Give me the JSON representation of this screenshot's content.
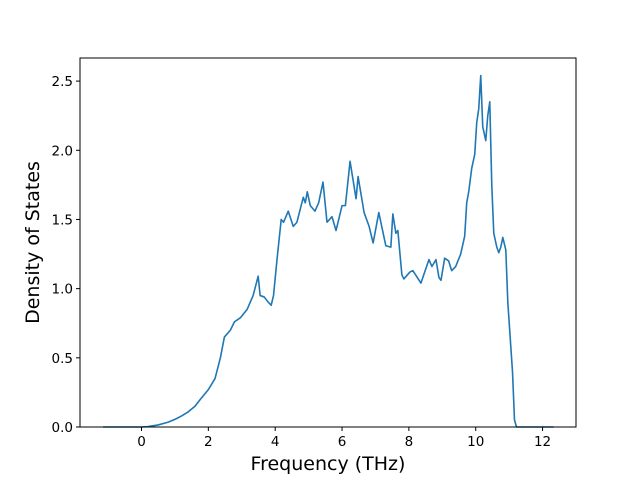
{
  "chart_data": {
    "type": "line",
    "x_label": "Frequency (THz)",
    "y_label": "Density of States",
    "xlim": [
      -1.84,
      13.0
    ],
    "ylim": [
      0,
      2.667
    ],
    "xticks": [
      0,
      2,
      4,
      6,
      8,
      10,
      12
    ],
    "yticks": [
      {
        "value": 0,
        "label": "0.0"
      },
      {
        "value": 0.5,
        "label": "0.5"
      },
      {
        "value": 1,
        "label": "1.0"
      },
      {
        "value": 1.5,
        "label": "1.5"
      },
      {
        "value": 2,
        "label": "2.0"
      },
      {
        "value": 2.5,
        "label": "2.5"
      }
    ],
    "series": [
      {
        "color": "#1f77b4",
        "x": [
          -1.15,
          0,
          0.2,
          0.5,
          0.8,
          1.0,
          1.2,
          1.4,
          1.6,
          1.76,
          2.0,
          2.2,
          2.36,
          2.48,
          2.66,
          2.78,
          2.96,
          3.16,
          3.34,
          3.49,
          3.55,
          3.67,
          3.8,
          3.88,
          3.95,
          4.05,
          4.18,
          4.25,
          4.39,
          4.54,
          4.65,
          4.84,
          4.9,
          4.96,
          5.05,
          5.19,
          5.3,
          5.43,
          5.55,
          5.7,
          5.82,
          6.0,
          6.1,
          6.24,
          6.42,
          6.48,
          6.66,
          6.81,
          6.93,
          7.1,
          7.31,
          7.46,
          7.52,
          7.61,
          7.67,
          7.79,
          7.85,
          8.03,
          8.12,
          8.36,
          8.6,
          8.69,
          8.81,
          8.9,
          8.96,
          9.07,
          9.19,
          9.28,
          9.4,
          9.55,
          9.67,
          9.73,
          9.79,
          9.88,
          9.97,
          10.03,
          10.09,
          10.15,
          10.21,
          10.3,
          10.36,
          10.42,
          10.48,
          10.54,
          10.63,
          10.69,
          10.75,
          10.81,
          10.9,
          10.96,
          11.1,
          11.16,
          11.22,
          12.33
        ],
        "values": [
          0,
          0,
          0.003,
          0.015,
          0.035,
          0.055,
          0.08,
          0.11,
          0.15,
          0.2,
          0.27,
          0.35,
          0.5,
          0.65,
          0.7,
          0.76,
          0.79,
          0.85,
          0.95,
          1.09,
          0.95,
          0.94,
          0.9,
          0.88,
          0.95,
          1.2,
          1.5,
          1.48,
          1.56,
          1.45,
          1.48,
          1.66,
          1.62,
          1.7,
          1.6,
          1.56,
          1.62,
          1.77,
          1.48,
          1.52,
          1.42,
          1.6,
          1.6,
          1.92,
          1.65,
          1.81,
          1.55,
          1.45,
          1.33,
          1.55,
          1.31,
          1.3,
          1.54,
          1.4,
          1.42,
          1.1,
          1.07,
          1.12,
          1.13,
          1.04,
          1.21,
          1.16,
          1.21,
          1.08,
          1.06,
          1.22,
          1.2,
          1.13,
          1.16,
          1.25,
          1.38,
          1.62,
          1.7,
          1.87,
          1.97,
          2.2,
          2.3,
          2.54,
          2.17,
          2.07,
          2.25,
          2.35,
          1.75,
          1.4,
          1.3,
          1.26,
          1.3,
          1.37,
          1.28,
          0.9,
          0.4,
          0.05,
          0,
          0
        ]
      }
    ]
  }
}
